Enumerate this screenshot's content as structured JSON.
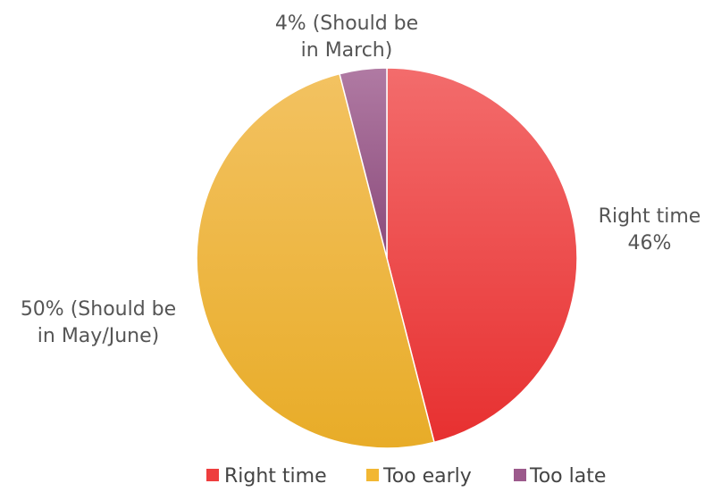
{
  "chart_data": {
    "type": "pie",
    "slices": [
      {
        "name": "Right time",
        "value": 46,
        "color": "#ee3e3e",
        "label_lines": [
          "Right time",
          "46%"
        ]
      },
      {
        "name": "Too early",
        "value": 50,
        "color": "#f2b733",
        "label_lines": [
          "50% (Should be",
          "in May/June)"
        ]
      },
      {
        "name": "Too late",
        "value": 4,
        "color": "#9c5a8c",
        "label_lines": [
          "4% (Should be",
          "in March)"
        ]
      }
    ],
    "legend": {
      "position": "bottom",
      "items": [
        "Right time",
        "Too early",
        "Too late"
      ]
    }
  }
}
